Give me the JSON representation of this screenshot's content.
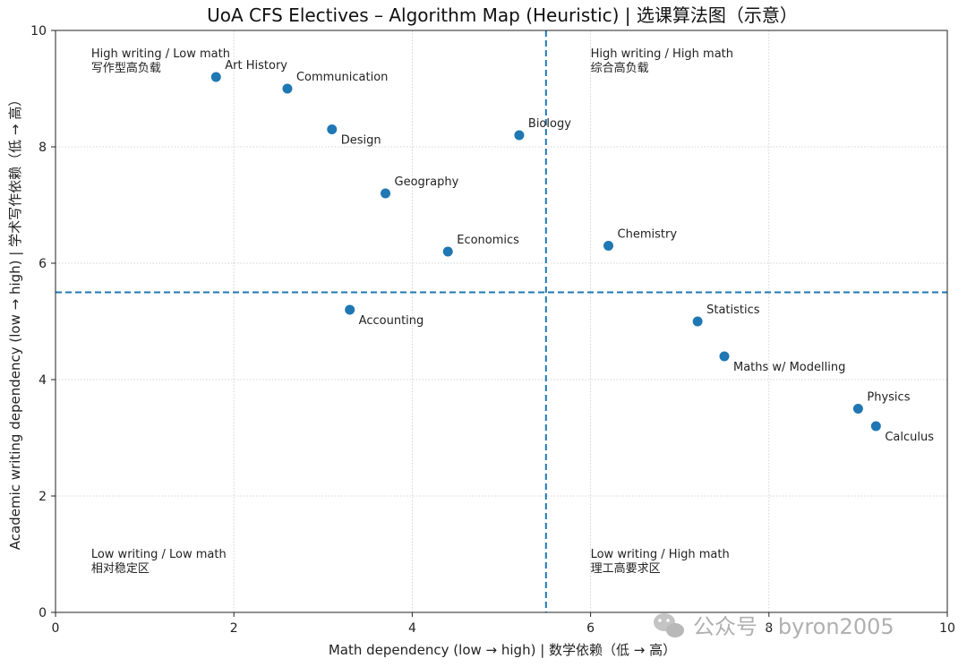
{
  "chart_data": {
    "type": "scatter",
    "title": "UoA CFS Electives – Algorithm Map (Heuristic) | 选课算法图（示意）",
    "xlabel": "Math dependency (low → high) | 数学依赖（低 → 高）",
    "ylabel": "Academic writing dependency (low → high) | 学术写作依赖（低 → 高）",
    "xlim": [
      0,
      10
    ],
    "ylim": [
      0,
      10
    ],
    "xticks": [
      0,
      2,
      4,
      6,
      8,
      10
    ],
    "yticks": [
      0,
      2,
      4,
      6,
      8,
      10
    ],
    "grid": true,
    "marker_color": "#1f77b4",
    "divider_color": "#1f77b4",
    "divider_x": 5.5,
    "divider_y": 5.5,
    "points": [
      {
        "label": "Art History",
        "x": 1.8,
        "y": 9.2
      },
      {
        "label": "Communication",
        "x": 2.6,
        "y": 9.0
      },
      {
        "label": "Design",
        "x": 3.1,
        "y": 8.3
      },
      {
        "label": "Geography",
        "x": 3.7,
        "y": 7.2
      },
      {
        "label": "Economics",
        "x": 4.4,
        "y": 6.2
      },
      {
        "label": "Biology",
        "x": 5.2,
        "y": 8.2
      },
      {
        "label": "Chemistry",
        "x": 6.2,
        "y": 6.3
      },
      {
        "label": "Accounting",
        "x": 3.3,
        "y": 5.2
      },
      {
        "label": "Statistics",
        "x": 7.2,
        "y": 5.0
      },
      {
        "label": "Maths w/ Modelling",
        "x": 7.5,
        "y": 4.4
      },
      {
        "label": "Physics",
        "x": 9.0,
        "y": 3.5
      },
      {
        "label": "Calculus",
        "x": 9.2,
        "y": 3.2
      }
    ],
    "quadrant_labels": [
      {
        "line1": "High writing / Low math",
        "line2": "写作型高负载",
        "x": 0.4,
        "y": 9.6
      },
      {
        "line1": "High writing / High math",
        "line2": "综合高负载",
        "x": 6.0,
        "y": 9.6
      },
      {
        "line1": "Low writing / Low math",
        "line2": "相对稳定区",
        "x": 0.4,
        "y": 1.0
      },
      {
        "line1": "Low writing / High math",
        "line2": "理工高要求区",
        "x": 6.0,
        "y": 1.0
      }
    ]
  },
  "watermark": "公众号 · byron2005"
}
